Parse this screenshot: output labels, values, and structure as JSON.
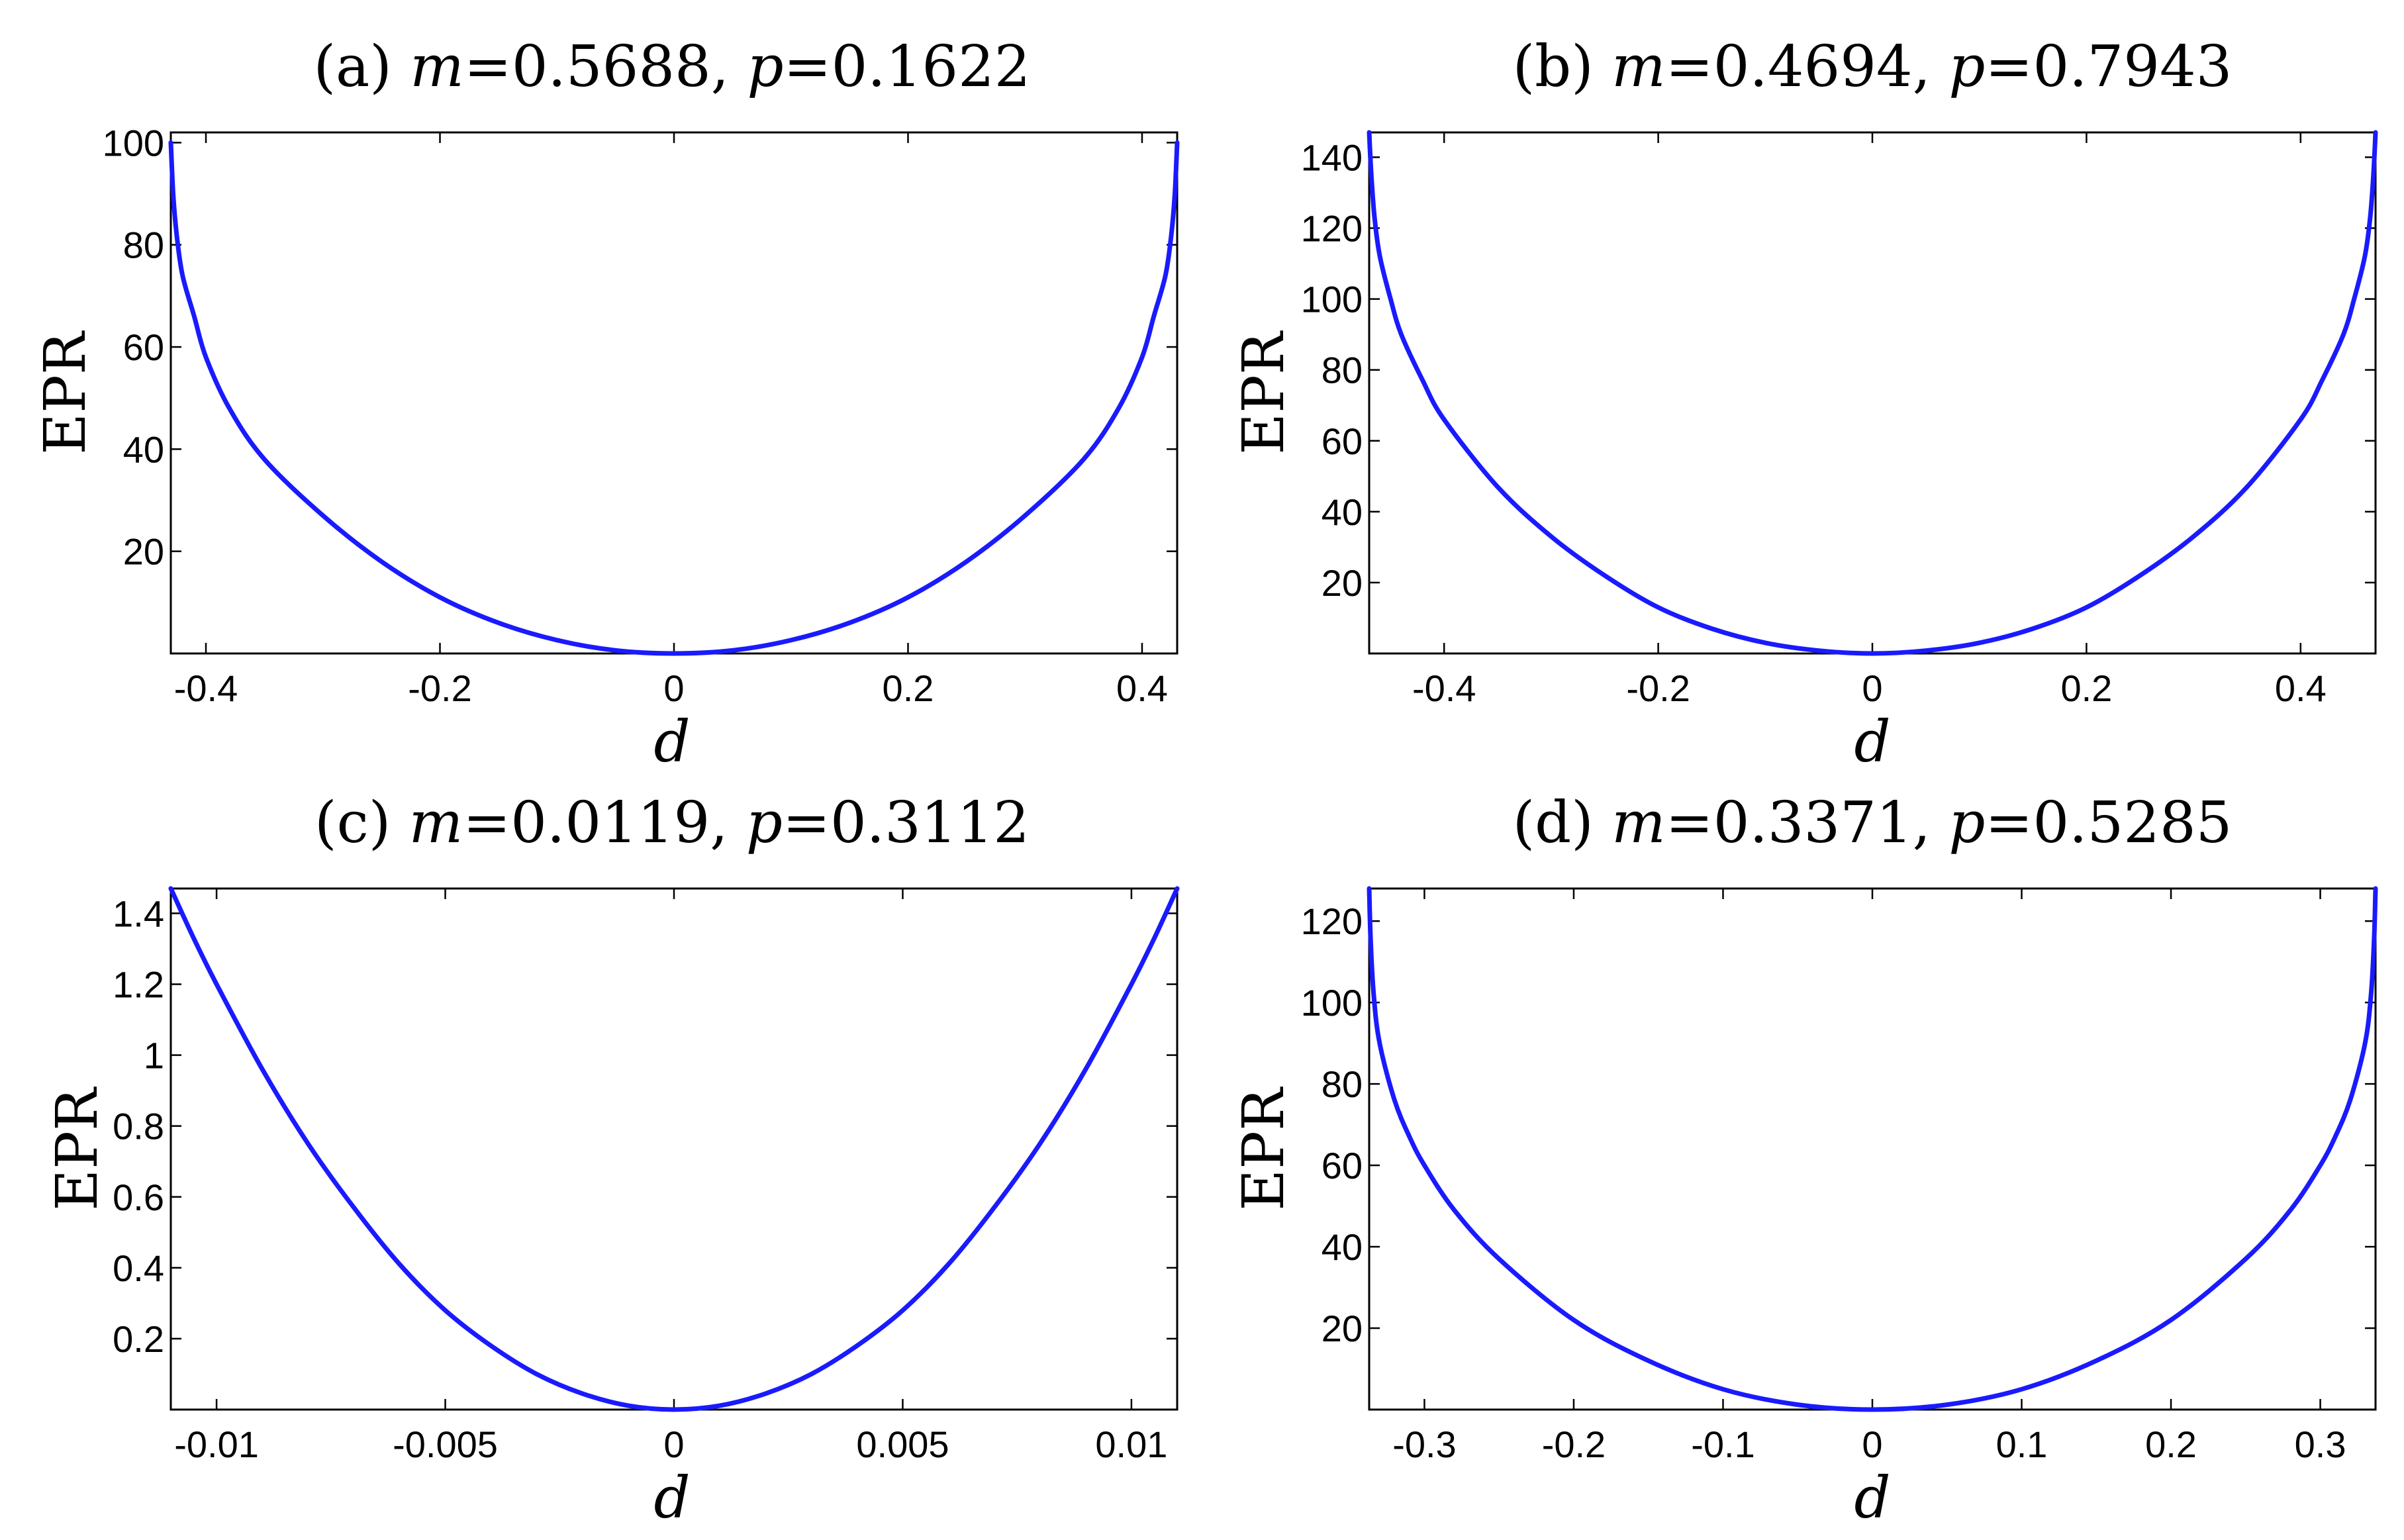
{
  "chart_data": [
    {
      "type": "line",
      "panel": "(a)",
      "title": {
        "prefix": "(a)",
        "m": "0.5688",
        "p": "0.1622"
      },
      "xlabel": "d",
      "ylabel": "EPR",
      "xlim": [
        -0.43,
        0.43
      ],
      "ylim": [
        0,
        102
      ],
      "xticks": [
        -0.4,
        -0.2,
        0,
        0.2,
        0.4
      ],
      "xtick_labels": [
        "-0.4",
        "-0.2",
        "0",
        "0.2",
        "0.4"
      ],
      "yticks": [
        20,
        40,
        60,
        80,
        100
      ],
      "ytick_labels": [
        "20",
        "40",
        "60",
        "80",
        "100"
      ],
      "grid": false,
      "series": [
        {
          "color": "#1a1aff",
          "x": [
            -0.43,
            -0.428,
            -0.425,
            -0.42,
            -0.41,
            -0.4,
            -0.38,
            -0.35,
            -0.3,
            -0.25,
            -0.2,
            -0.15,
            -0.1,
            -0.05,
            0,
            0.05,
            0.1,
            0.15,
            0.2,
            0.25,
            0.3,
            0.35,
            0.38,
            0.4,
            0.41,
            0.42,
            0.425,
            0.428,
            0.43
          ],
          "y": [
            100,
            90,
            82,
            74,
            66,
            58,
            48,
            38,
            27,
            18,
            11,
            6,
            2.6,
            0.6,
            0,
            0.6,
            2.6,
            6,
            11,
            18,
            27,
            38,
            48,
            58,
            66,
            74,
            82,
            90,
            100
          ]
        }
      ]
    },
    {
      "type": "line",
      "panel": "(b)",
      "title": {
        "prefix": "(b)",
        "m": "0.4694",
        "p": "0.7943"
      },
      "xlabel": "d",
      "ylabel": "EPR",
      "xlim": [
        -0.47,
        0.47
      ],
      "ylim": [
        0,
        147
      ],
      "xticks": [
        -0.4,
        -0.2,
        0,
        0.2,
        0.4
      ],
      "xtick_labels": [
        "-0.4",
        "-0.2",
        "0",
        "0.2",
        "0.4"
      ],
      "yticks": [
        20,
        40,
        60,
        80,
        100,
        120,
        140
      ],
      "ytick_labels": [
        "20",
        "40",
        "60",
        "80",
        "100",
        "120",
        "140"
      ],
      "grid": false,
      "series": [
        {
          "color": "#1a1aff",
          "x": [
            -0.47,
            -0.468,
            -0.465,
            -0.46,
            -0.45,
            -0.44,
            -0.42,
            -0.4,
            -0.35,
            -0.3,
            -0.25,
            -0.2,
            -0.15,
            -0.1,
            -0.05,
            0,
            0.05,
            0.1,
            0.15,
            0.2,
            0.25,
            0.3,
            0.35,
            0.4,
            0.42,
            0.44,
            0.45,
            0.46,
            0.465,
            0.468,
            0.47
          ],
          "y": [
            147,
            135,
            123,
            112,
            100,
            90,
            77,
            66,
            47,
            33,
            22,
            13,
            7,
            3,
            0.8,
            0,
            0.8,
            3,
            7,
            13,
            22,
            33,
            47,
            66,
            77,
            90,
            100,
            112,
            123,
            135,
            147
          ]
        }
      ]
    },
    {
      "type": "line",
      "panel": "(c)",
      "title": {
        "prefix": "(c)",
        "m": "0.0119",
        "p": "0.3112"
      },
      "xlabel": "d",
      "ylabel": "EPR",
      "xlim": [
        -0.011,
        0.011
      ],
      "ylim": [
        0,
        1.47
      ],
      "xticks": [
        -0.01,
        -0.005,
        0,
        0.005,
        0.01
      ],
      "xtick_labels": [
        "-0.01",
        "-0.005",
        "0",
        "0.005",
        "0.01"
      ],
      "yticks": [
        0.2,
        0.4,
        0.6,
        0.8,
        1,
        1.2,
        1.4
      ],
      "ytick_labels": [
        "0.2",
        "0.4",
        "0.6",
        "0.8",
        "1",
        "1.2",
        "1.4"
      ],
      "grid": false,
      "series": [
        {
          "color": "#1a1aff",
          "x": [
            -0.011,
            -0.0105,
            -0.01,
            -0.009,
            -0.008,
            -0.007,
            -0.006,
            -0.005,
            -0.004,
            -0.003,
            -0.002,
            -0.001,
            0,
            0.001,
            0.002,
            0.003,
            0.004,
            0.005,
            0.006,
            0.007,
            0.008,
            0.009,
            0.01,
            0.0105,
            0.011
          ],
          "y": [
            1.47,
            1.33,
            1.2,
            0.96,
            0.75,
            0.57,
            0.41,
            0.28,
            0.18,
            0.1,
            0.045,
            0.011,
            0,
            0.011,
            0.045,
            0.1,
            0.18,
            0.28,
            0.41,
            0.57,
            0.75,
            0.96,
            1.2,
            1.33,
            1.47
          ]
        }
      ]
    },
    {
      "type": "line",
      "panel": "(d)",
      "title": {
        "prefix": "(d)",
        "m": "0.3371",
        "p": "0.5285"
      },
      "xlabel": "d",
      "ylabel": "EPR",
      "xlim": [
        -0.337,
        0.337
      ],
      "ylim": [
        0,
        128
      ],
      "xticks": [
        -0.3,
        -0.2,
        -0.1,
        0,
        0.1,
        0.2,
        0.3
      ],
      "xtick_labels": [
        "-0.3",
        "-0.2",
        "-0.1",
        "0",
        "0.1",
        "0.2",
        "0.3"
      ],
      "yticks": [
        20,
        40,
        60,
        80,
        100,
        120
      ],
      "ytick_labels": [
        "20",
        "40",
        "60",
        "80",
        "100",
        "120"
      ],
      "grid": false,
      "series": [
        {
          "color": "#1a1aff",
          "x": [
            -0.337,
            -0.336,
            -0.334,
            -0.33,
            -0.32,
            -0.31,
            -0.3,
            -0.28,
            -0.25,
            -0.2,
            -0.15,
            -0.1,
            -0.05,
            0,
            0.05,
            0.1,
            0.15,
            0.2,
            0.25,
            0.28,
            0.3,
            0.31,
            0.32,
            0.33,
            0.334,
            0.336,
            0.337
          ],
          "y": [
            128,
            115,
            102,
            90,
            76,
            67,
            60,
            49,
            37,
            22,
            12,
            5,
            1.2,
            0,
            1.2,
            5,
            12,
            22,
            37,
            49,
            60,
            67,
            76,
            90,
            102,
            115,
            128
          ]
        }
      ]
    }
  ]
}
